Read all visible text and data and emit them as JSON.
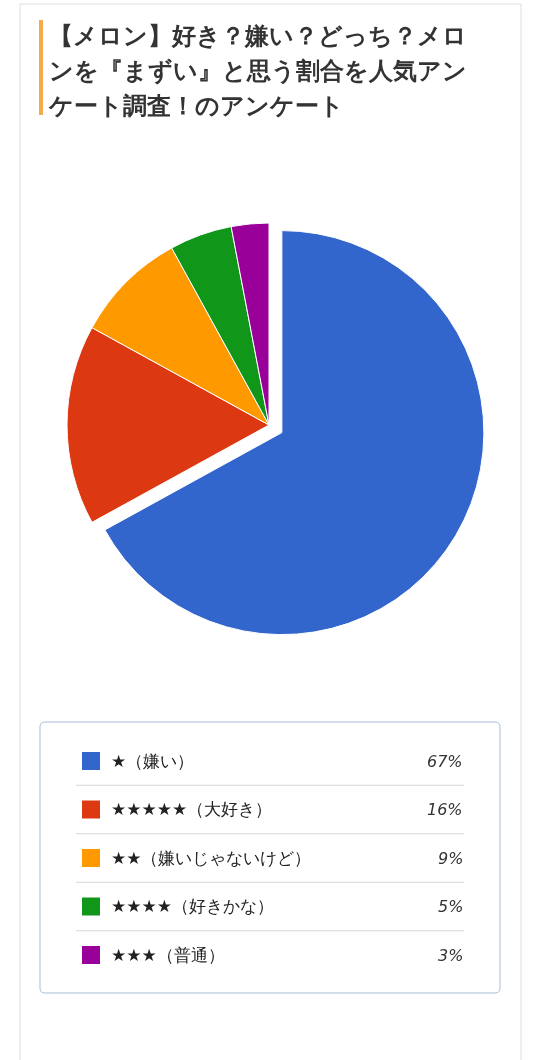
{
  "chart_data": {
    "type": "pie",
    "title": "【メロン】好き？嫌い？どっち？メロンを『まずい』と思う割合を人気アンケート調査！のアンケート",
    "categories": [
      "★（嫌い）",
      "★★★★★（大好き）",
      "★★（嫌いじゃないけど）",
      "★★★★（好きかな）",
      "★★★（普通）"
    ],
    "values": [
      67,
      16,
      9,
      5,
      3
    ],
    "colors": [
      "#3366cc",
      "#dc3912",
      "#ff9900",
      "#109618",
      "#990099"
    ],
    "value_labels": [
      "67%",
      "16%",
      "9%",
      "5%",
      "3%"
    ],
    "legend": "bottom"
  }
}
